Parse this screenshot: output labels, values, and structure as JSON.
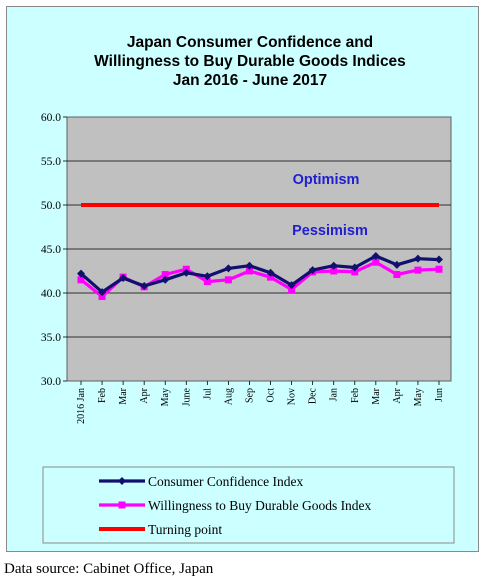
{
  "chart_data": {
    "type": "line",
    "title": [
      "Japan Consumer Confidence and",
      "Willingness to Buy Durable Goods Indices",
      "Jan 2016 - June 2017"
    ],
    "xlabel": "",
    "ylabel": "",
    "ylim": [
      30.0,
      60.0
    ],
    "yticks": [
      "30.0",
      "35.0",
      "40.0",
      "45.0",
      "50.0",
      "55.0",
      "60.0"
    ],
    "categories": [
      "2016 Jan",
      "Feb",
      "Mar",
      "Apr",
      "May",
      "June",
      "Jul",
      "Aug",
      "Sep",
      "Oct",
      "Nov",
      "Dec",
      "Jan",
      "Feb",
      "Mar",
      "Apr",
      "May",
      "Jun"
    ],
    "series": [
      {
        "name": "Consumer Confidence Index",
        "color": "#10106e",
        "values": [
          42.2,
          40.1,
          41.7,
          40.8,
          41.5,
          42.3,
          41.9,
          42.8,
          43.1,
          42.3,
          40.9,
          42.6,
          43.1,
          42.9,
          44.2,
          43.2,
          43.9,
          43.8
        ]
      },
      {
        "name": "Willingness to Buy Durable Goods Index",
        "color": "#ff00ff",
        "values": [
          41.5,
          39.6,
          41.8,
          40.7,
          42.1,
          42.7,
          41.3,
          41.5,
          42.5,
          41.8,
          40.4,
          42.4,
          42.5,
          42.4,
          43.5,
          42.1,
          42.6,
          42.7
        ]
      },
      {
        "name": "Turning point",
        "color": "#ff0000",
        "values": [
          50.0,
          50.0,
          50.0,
          50.0,
          50.0,
          50.0,
          50.0,
          50.0,
          50.0,
          50.0,
          50.0,
          50.0,
          50.0,
          50.0,
          50.0,
          50.0,
          50.0,
          50.0
        ]
      }
    ],
    "annotations": {
      "upper": "Optimism",
      "lower": "Pessimism"
    },
    "grid": true,
    "legend_position": "bottom",
    "plot_background": "#c0c0c0",
    "figure_background": "#ccffff"
  },
  "source_note": "Data source: Cabinet Office, Japan"
}
